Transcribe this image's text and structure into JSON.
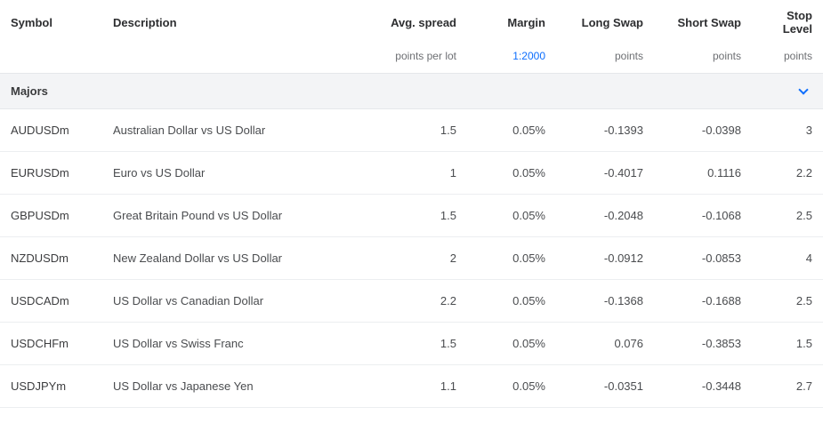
{
  "headers": {
    "symbol": "Symbol",
    "description": "Description",
    "avg_spread": "Avg. spread",
    "margin": "Margin",
    "long_swap": "Long Swap",
    "short_swap": "Short Swap",
    "stop_level": "Stop Level"
  },
  "subheaders": {
    "avg_spread": "points per lot",
    "margin": "1:2000",
    "long_swap": "points",
    "short_swap": "points",
    "stop_level": "points"
  },
  "group": {
    "name": "Majors"
  },
  "rows": [
    {
      "symbol": "AUDUSDm",
      "description": "Australian Dollar vs US Dollar",
      "avg_spread": "1.5",
      "margin": "0.05%",
      "long_swap": "-0.1393",
      "short_swap": "-0.0398",
      "stop_level": "3"
    },
    {
      "symbol": "EURUSDm",
      "description": "Euro vs US Dollar",
      "avg_spread": "1",
      "margin": "0.05%",
      "long_swap": "-0.4017",
      "short_swap": "0.1116",
      "stop_level": "2.2"
    },
    {
      "symbol": "GBPUSDm",
      "description": "Great Britain Pound vs US Dollar",
      "avg_spread": "1.5",
      "margin": "0.05%",
      "long_swap": "-0.2048",
      "short_swap": "-0.1068",
      "stop_level": "2.5"
    },
    {
      "symbol": "NZDUSDm",
      "description": "New Zealand Dollar vs US Dollar",
      "avg_spread": "2",
      "margin": "0.05%",
      "long_swap": "-0.0912",
      "short_swap": "-0.0853",
      "stop_level": "4"
    },
    {
      "symbol": "USDCADm",
      "description": "US Dollar vs Canadian Dollar",
      "avg_spread": "2.2",
      "margin": "0.05%",
      "long_swap": "-0.1368",
      "short_swap": "-0.1688",
      "stop_level": "2.5"
    },
    {
      "symbol": "USDCHFm",
      "description": "US Dollar vs Swiss Franc",
      "avg_spread": "1.5",
      "margin": "0.05%",
      "long_swap": "0.076",
      "short_swap": "-0.3853",
      "stop_level": "1.5"
    },
    {
      "symbol": "USDJPYm",
      "description": "US Dollar vs Japanese Yen",
      "avg_spread": "1.1",
      "margin": "0.05%",
      "long_swap": "-0.0351",
      "short_swap": "-0.3448",
      "stop_level": "2.7"
    }
  ],
  "colors": {
    "text": "#393a3c",
    "muted": "#6d6f73",
    "link": "#0d6efd",
    "border": "#e5e7ea",
    "row_border": "#eceef0",
    "group_bg": "#f3f4f6",
    "background": "#ffffff"
  }
}
